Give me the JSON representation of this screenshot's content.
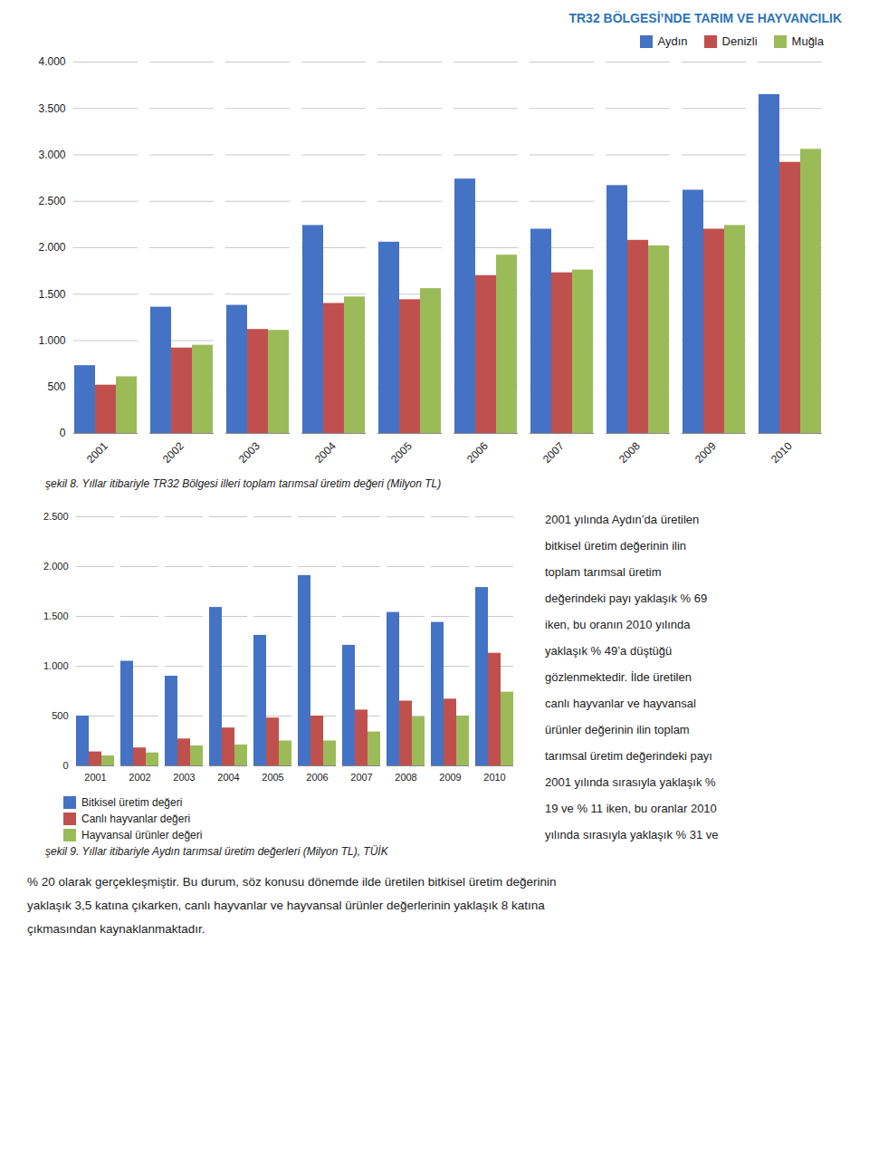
{
  "title": "TR32 BÖLGESİ’NDE TARIM VE HAYVANCILIK",
  "chart_data": [
    {
      "type": "bar",
      "title": "şekil 8. Yıllar itibariyle TR32 Bölgesi illeri toplam tarımsal üretim değeri (Milyon TL)",
      "categories": [
        "2001",
        "2002",
        "2003",
        "2004",
        "2005",
        "2006",
        "2007",
        "2008",
        "2009",
        "2010"
      ],
      "series": [
        {
          "name": "Aydın",
          "color": "#4472C4",
          "values": [
            730,
            1360,
            1380,
            2240,
            2060,
            2740,
            2200,
            2670,
            2620,
            3650
          ]
        },
        {
          "name": "Denizli",
          "color": "#C0504D",
          "values": [
            520,
            920,
            1120,
            1400,
            1440,
            1700,
            1730,
            2080,
            2200,
            2920
          ]
        },
        {
          "name": "Muğla",
          "color": "#9BBB59",
          "values": [
            610,
            950,
            1110,
            1470,
            1560,
            1920,
            1760,
            2020,
            2240,
            3060
          ]
        }
      ],
      "ylim": [
        0,
        4000
      ],
      "yticks": [
        0,
        500,
        {
          "value": 1000,
          "label": "1.000"
        },
        {
          "value": 1500,
          "label": "1.500"
        },
        {
          "value": 2000,
          "label": "2.000"
        },
        {
          "value": 2500,
          "label": "2.500"
        },
        {
          "value": 3000,
          "label": "3.000"
        },
        {
          "value": 3500,
          "label": "3.500"
        },
        {
          "value": 4000,
          "label": "4.000"
        }
      ],
      "grid": true,
      "legend": "upper right"
    },
    {
      "type": "bar",
      "title": "şekil 9. Yıllar itibariyle Aydın tarımsal üretim değerleri (Milyon TL), TÜİK",
      "categories": [
        "2001",
        "2002",
        "2003",
        "2004",
        "2005",
        "2006",
        "2007",
        "2008",
        "2009",
        "2010"
      ],
      "series": [
        {
          "name": "Bitkisel üretim değeri",
          "color": "#4472C4",
          "values": [
            500,
            1050,
            900,
            1590,
            1310,
            1910,
            1210,
            1540,
            1440,
            1790
          ]
        },
        {
          "name": "Canlı hayvanlar değeri",
          "color": "#C0504D",
          "values": [
            140,
            180,
            270,
            380,
            480,
            500,
            560,
            650,
            670,
            1130
          ]
        },
        {
          "name": "Hayvansal ürünler değeri",
          "color": "#9BBB59",
          "values": [
            100,
            130,
            200,
            210,
            250,
            250,
            340,
            490,
            500,
            740
          ]
        }
      ],
      "ylim": [
        0,
        2500
      ],
      "yticks": [
        0,
        500,
        {
          "value": 1000,
          "label": "1.000"
        },
        {
          "value": 1500,
          "label": "1.500"
        },
        {
          "value": 2000,
          "label": "2.000"
        },
        {
          "value": 2500,
          "label": "2.500"
        }
      ],
      "grid": true,
      "legend": "bottom",
      "annotations": [
        "2001 yılında Aydın’da üretilen",
        "bitkisel üretim değerinin ilin",
        "toplam tarımsal üretim",
        "değerindeki payı yaklaşık % 69",
        "iken, bu oranın 2010 yılında",
        "yaklaşık % 49’a düştüğü",
        "gözlenmektedir. İlde üretilen",
        "canlı hayvanlar ve hayvansal",
        "ürünler değerinin ilin toplam",
        "tarımsal üretim değerindeki payı",
        "2001 yılında sırasıyla yaklaşık %",
        "19 ve % 11 iken, bu oranlar 2010",
        "yılında sırasıyla yaklaşık % 31 ve"
      ]
    }
  ],
  "text": [
    "% 20 olarak gerçekleşmiştir. Bu durum, söz konusu dönemde ilde üretilen bitkisel üretim değerinin",
    "yaklaşık 3,5 katına çıkarken, canlı hayvanlar ve hayvansal ürünler değerlerinin yaklaşık 8 katına",
    "çıkmasından kaynaklanmaktadır."
  ]
}
